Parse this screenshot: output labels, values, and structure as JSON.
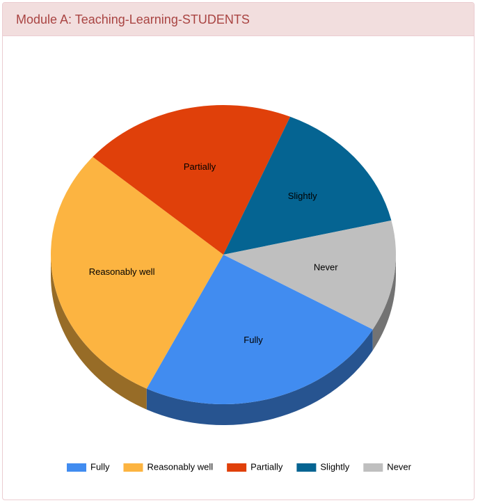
{
  "header": {
    "title": "Module A: Teaching-Learning-STUDENTS"
  },
  "chart_data": {
    "type": "pie",
    "categories": [
      "Fully",
      "Reasonably well",
      "Partially",
      "Slightly",
      "Never"
    ],
    "values": [
      24,
      29,
      20,
      15,
      12
    ],
    "colors": [
      "#418cf0",
      "#fcb441",
      "#e0400a",
      "#056492",
      "#bfbfbf"
    ],
    "legend": "bottom"
  }
}
